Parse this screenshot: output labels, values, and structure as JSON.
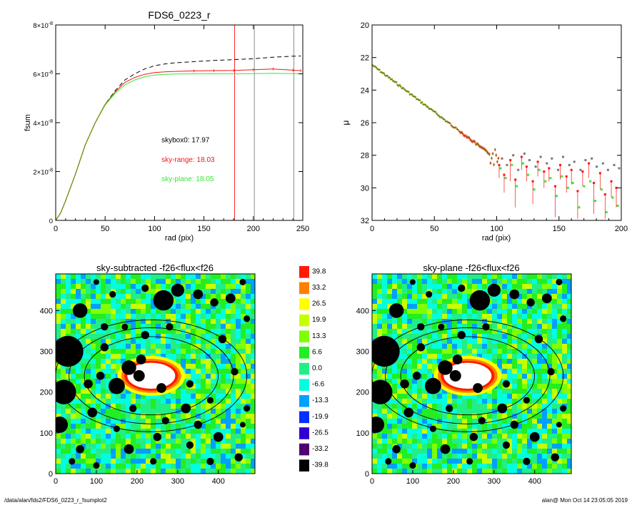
{
  "footer": {
    "path": "/data/alan/fds2/FDS6_0223_r_fsumplot2",
    "stamp": "alan@  Mon Oct 14 23:05:05 2019"
  },
  "colors": {
    "red": "#ff1010",
    "green": "#39e639",
    "olive": "#7a8a10",
    "black": "#000000",
    "gray": "#808080",
    "white": "#ffffff"
  },
  "chart_data": [
    {
      "type": "line",
      "title": "FDS6_0223_r",
      "xlabel": "rad (pix)",
      "ylabel": "fsum",
      "xlim": [
        0,
        250
      ],
      "ylim": [
        0,
        8e-08
      ],
      "xticks": [
        "0",
        "50",
        "100",
        "150",
        "200",
        "250"
      ],
      "yticks": [
        {
          "value": 0,
          "mant": "0",
          "exp": ""
        },
        {
          "value": 2e-08,
          "mant": "2×10",
          "exp": "-8"
        },
        {
          "value": 4e-08,
          "mant": "4×10",
          "exp": "-8"
        },
        {
          "value": 6e-08,
          "mant": "6×10",
          "exp": "-8"
        },
        {
          "value": 8e-08,
          "mant": "8×10",
          "exp": "-8"
        }
      ],
      "vlines": [
        {
          "x": 181,
          "color": "red"
        },
        {
          "x": 201,
          "color": "gray"
        },
        {
          "x": 241,
          "color": "gray"
        }
      ],
      "annotations": [
        {
          "text": "skybox0: 17.97",
          "color": "black",
          "x": 107,
          "y": 3.2e-08
        },
        {
          "text": "sky-range: 18.03",
          "color": "red",
          "x": 107,
          "y": 2.4e-08
        },
        {
          "text": "sky-plane: 18.05",
          "color": "green",
          "x": 107,
          "y": 1.6e-08
        }
      ],
      "series": [
        {
          "style": "dashed",
          "color": "black",
          "x": [
            0,
            5,
            10,
            20,
            30,
            40,
            50,
            60,
            70,
            80,
            90,
            100,
            110,
            120,
            140,
            160,
            180,
            200,
            220,
            240,
            248
          ],
          "y": [
            0,
            3e-09,
            8e-09,
            1.9e-08,
            3.1e-08,
            4e-08,
            4.75e-08,
            5.3e-08,
            5.75e-08,
            6e-08,
            6.2e-08,
            6.33e-08,
            6.4e-08,
            6.45e-08,
            6.5e-08,
            6.55e-08,
            6.58e-08,
            6.62e-08,
            6.68e-08,
            6.72e-08,
            6.73e-08
          ]
        },
        {
          "style": "solid",
          "color": "red",
          "x": [
            0,
            5,
            10,
            20,
            30,
            40,
            50,
            60,
            70,
            80,
            90,
            100,
            110,
            120,
            140,
            160,
            180,
            200,
            220,
            240,
            248
          ],
          "y": [
            0,
            3e-09,
            8e-09,
            1.9e-08,
            3.1e-08,
            4e-08,
            4.75e-08,
            5.25e-08,
            5.65e-08,
            5.85e-08,
            5.98e-08,
            6.05e-08,
            6.08e-08,
            6.1e-08,
            6.12e-08,
            6.13e-08,
            6.14e-08,
            6.17e-08,
            6.2e-08,
            6.15e-08,
            6.13e-08
          ]
        },
        {
          "style": "solid",
          "color": "green",
          "x": [
            0,
            5,
            10,
            20,
            30,
            40,
            50,
            60,
            70,
            80,
            90,
            100,
            110,
            120,
            140,
            160,
            180,
            200,
            220,
            240,
            248
          ],
          "y": [
            0,
            3e-09,
            8e-09,
            1.9e-08,
            3.1e-08,
            4e-08,
            4.72e-08,
            5.2e-08,
            5.55e-08,
            5.75e-08,
            5.88e-08,
            5.95e-08,
            5.98e-08,
            5.99e-08,
            6e-08,
            6e-08,
            6e-08,
            6.01e-08,
            6.02e-08,
            6.01e-08,
            6e-08
          ]
        }
      ]
    },
    {
      "type": "scatter",
      "title": "",
      "xlabel": "rad (pix)",
      "ylabel": "μ",
      "xlim": [
        0,
        200
      ],
      "ylim": [
        32,
        20
      ],
      "xticks": [
        "0",
        "50",
        "100",
        "150",
        "200"
      ],
      "yticks": [
        "20",
        "22",
        "24",
        "26",
        "28",
        "30",
        "32"
      ],
      "profile": {
        "x0": 0,
        "y0": 22.45,
        "slope": 0.058,
        "x_scatter_start": 95
      },
      "outer_points": {
        "x": [
          102,
          106,
          111,
          115,
          120,
          124,
          129,
          133,
          138,
          142,
          147,
          151,
          156,
          160,
          165,
          169,
          174,
          178,
          183,
          187,
          192,
          196
        ],
        "y_red": [
          28.6,
          29.2,
          28.3,
          29.5,
          28.1,
          28.7,
          29.6,
          28.4,
          29.0,
          28.8,
          29.9,
          28.6,
          29.3,
          28.9,
          30.2,
          29.0,
          28.5,
          29.7,
          29.1,
          30.4,
          29.6,
          30.0
        ],
        "y_green": [
          28.8,
          29.4,
          28.6,
          29.9,
          28.5,
          29.2,
          30.1,
          28.9,
          29.6,
          29.4,
          30.5,
          29.3,
          30.0,
          29.7,
          31.2,
          29.9,
          29.6,
          30.8,
          30.1,
          31.5,
          30.6,
          31.1
        ],
        "y_gray": [
          28.2,
          28.6,
          28.0,
          28.9,
          27.9,
          28.3,
          28.7,
          28.1,
          28.5,
          28.2,
          28.9,
          28.1,
          28.6,
          28.4,
          28.9,
          28.3,
          28.2,
          28.7,
          28.5,
          28.9,
          28.6,
          28.8
        ],
        "y_err_low": [
          29.4,
          30.3,
          29.6,
          31.2,
          28.9,
          29.6,
          31.0,
          29.3,
          30.0,
          29.6,
          31.8,
          29.5,
          30.3,
          29.8,
          31.9,
          29.9,
          29.4,
          31.6,
          30.1,
          31.9,
          30.6,
          31.2
        ]
      }
    },
    {
      "type": "heatmap",
      "title": "sky-subtracted -f26<flux<f26",
      "xticks": [
        "0",
        "100",
        "200",
        "300",
        "400"
      ],
      "yticks": [
        "0",
        "100",
        "200",
        "300",
        "400"
      ],
      "extent": [
        0,
        490,
        0,
        490
      ],
      "colorbar": [
        {
          "label": "39.8",
          "color": "#ff1a00"
        },
        {
          "label": "33.2",
          "color": "#ff7f00"
        },
        {
          "label": "26.5",
          "color": "#ffff00"
        },
        {
          "label": "19.9",
          "color": "#c8ff00"
        },
        {
          "label": "13.3",
          "color": "#7fff00"
        },
        {
          "label": "6.6",
          "color": "#22ee22"
        },
        {
          "label": "0.0",
          "color": "#22ee88"
        },
        {
          "label": "-6.6",
          "color": "#00ffe0"
        },
        {
          "label": "-13.3",
          "color": "#00a0ff"
        },
        {
          "label": "-19.9",
          "color": "#0030ff"
        },
        {
          "label": "-26.5",
          "color": "#3000d0"
        },
        {
          "label": "-33.2",
          "color": "#500070"
        },
        {
          "label": "-39.8",
          "color": "#000000"
        }
      ]
    },
    {
      "type": "heatmap",
      "title": "sky-plane -f26<flux<f26",
      "xticks": [
        "0",
        "100",
        "200",
        "300",
        "400"
      ],
      "yticks": [
        "0",
        "100",
        "200",
        "300",
        "400"
      ],
      "extent": [
        0,
        490,
        0,
        490
      ]
    }
  ]
}
